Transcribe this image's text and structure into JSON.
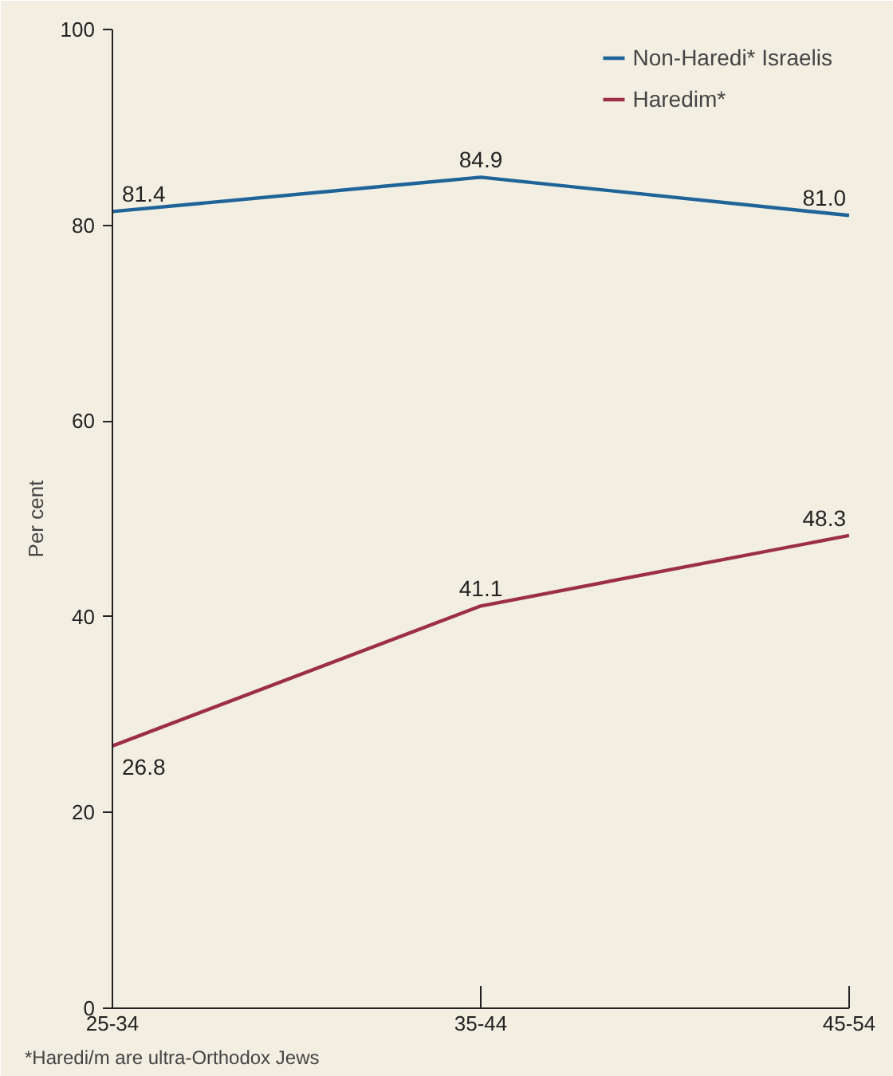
{
  "chart_data": {
    "type": "line",
    "categories": [
      "25-34",
      "35-44",
      "45-54"
    ],
    "series": [
      {
        "name": "Non-Haredi* Israelis",
        "color": "#1f6499",
        "values": [
          81.4,
          84.9,
          81.0
        ],
        "value_labels": [
          "81.4",
          "84.9",
          "81.0"
        ]
      },
      {
        "name": "Haredim*",
        "color": "#9c2f46",
        "values": [
          26.8,
          41.1,
          48.3
        ],
        "value_labels": [
          "26.8",
          "41.1",
          "48.3"
        ]
      }
    ],
    "ylabel": "Per cent",
    "ylim": [
      0,
      100
    ],
    "yticks": [
      0,
      20,
      40,
      60,
      80,
      100
    ],
    "legend": "top right",
    "grid": false,
    "marker": "none",
    "line_style": "solid",
    "annotations": [
      "*Haredi/m are ultra-Orthodox Jews"
    ]
  }
}
